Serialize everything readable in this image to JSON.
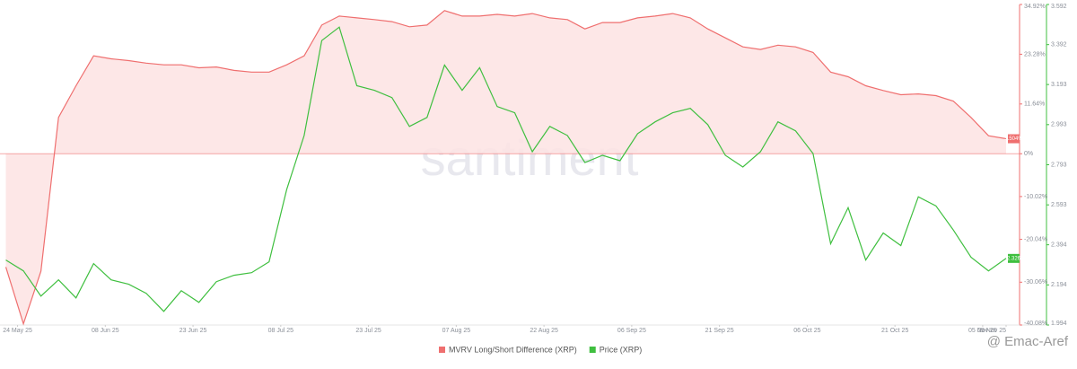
{
  "chart_data": {
    "type": "line",
    "x": [
      "22 May 25",
      "25 May 25",
      "28 May 25",
      "31 May 25",
      "03 Jun 25",
      "06 Jun 25",
      "09 Jun 25",
      "12 Jun 25",
      "15 Jun 25",
      "18 Jun 25",
      "21 Jun 25",
      "24 Jun 25",
      "27 Jun 25",
      "30 Jun 25",
      "03 Jul 25",
      "06 Jul 25",
      "09 Jul 25",
      "12 Jul 25",
      "15 Jul 25",
      "18 Jul 25",
      "21 Jul 25",
      "24 Jul 25",
      "27 Jul 25",
      "30 Jul 25",
      "02 Aug 25",
      "05 Aug 25",
      "08 Aug 25",
      "11 Aug 25",
      "14 Aug 25",
      "17 Aug 25",
      "20 Aug 25",
      "23 Aug 25",
      "26 Aug 25",
      "29 Aug 25",
      "01 Sep 25",
      "04 Sep 25",
      "07 Sep 25",
      "10 Sep 25",
      "13 Sep 25",
      "16 Sep 25",
      "19 Sep 25",
      "22 Sep 25",
      "25 Sep 25",
      "28 Sep 25",
      "01 Oct 25",
      "04 Oct 25",
      "07 Oct 25",
      "10 Oct 25",
      "13 Oct 25",
      "16 Oct 25",
      "19 Oct 25",
      "22 Oct 25",
      "25 Oct 25",
      "28 Oct 25",
      "31 Oct 25",
      "03 Nov 25",
      "06 Nov 25",
      "09 Nov 25"
    ],
    "xlim": [
      "21 May 25",
      "09 Nov 25"
    ],
    "xticks": [
      "24 May 25",
      "08 Jun 25",
      "23 Jun 25",
      "08 Jul 25",
      "23 Jul 25",
      "07 Aug 25",
      "22 Aug 25",
      "06 Sep 25",
      "21 Sep 25",
      "06 Oct 25",
      "21 Oct 25",
      "05 Nov 25",
      "09 Nov 25"
    ],
    "ylim": [
      -40.08,
      34.92
    ],
    "yticks": [
      {
        "value": 34.92,
        "label": "34.92%"
      },
      {
        "value": 23.28,
        "label": "23.28%"
      },
      {
        "value": 11.64,
        "label": "11.64%"
      },
      {
        "value": 0,
        "label": "0%"
      },
      {
        "value": -10.02,
        "label": "-10.02%"
      },
      {
        "value": -20.04,
        "label": "-20.04%"
      },
      {
        "value": -30.06,
        "label": "-30.06%"
      },
      {
        "value": -40.08,
        "label": "-40.08%"
      }
    ],
    "y2lim": [
      1.994,
      3.592
    ],
    "y2ticks": [
      3.592,
      3.392,
      3.193,
      2.993,
      2.793,
      2.593,
      2.394,
      2.194,
      1.994
    ],
    "series": [
      {
        "name": "MVRV Long/Short Difference (XRP)",
        "color": "#ef6f6f",
        "fill": "#fde3e3",
        "end_label": "3.504%",
        "values": [
          -26.5,
          -39.8,
          -27.5,
          8.5,
          15.9,
          22.9,
          22.2,
          21.8,
          21.2,
          20.8,
          20.8,
          20.1,
          20.3,
          19.5,
          19.1,
          19.1,
          20.8,
          22.9,
          30.1,
          32.2,
          31.8,
          31.4,
          30.9,
          29.7,
          30.1,
          33.5,
          32.2,
          32.2,
          32.6,
          32.2,
          32.8,
          31.8,
          31.4,
          29.2,
          30.7,
          30.7,
          31.8,
          32.2,
          32.8,
          31.8,
          29.2,
          27.1,
          25.0,
          24.4,
          25.4,
          25.0,
          23.7,
          19.1,
          18.0,
          15.9,
          14.8,
          13.8,
          14.0,
          13.6,
          12.3,
          8.5,
          4.2,
          3.504
        ]
      },
      {
        "name": "Price (XRP)",
        "color": "#3fbf3f",
        "axis": "y2",
        "end_label": "2.326",
        "values": [
          2.318,
          2.264,
          2.138,
          2.219,
          2.129,
          2.3,
          2.219,
          2.197,
          2.152,
          2.062,
          2.165,
          2.107,
          2.21,
          2.242,
          2.255,
          2.309,
          2.669,
          2.939,
          3.412,
          3.479,
          3.187,
          3.164,
          3.128,
          2.984,
          3.029,
          3.29,
          3.164,
          3.277,
          3.083,
          3.052,
          2.858,
          2.984,
          2.939,
          2.804,
          2.84,
          2.813,
          2.948,
          3.007,
          3.052,
          3.074,
          2.993,
          2.84,
          2.782,
          2.858,
          3.007,
          2.962,
          2.849,
          2.399,
          2.579,
          2.318,
          2.453,
          2.39,
          2.633,
          2.588,
          2.467,
          2.332,
          2.264,
          2.326
        ]
      }
    ],
    "watermark": "santiment",
    "credit": "@ Emac-Aref"
  }
}
